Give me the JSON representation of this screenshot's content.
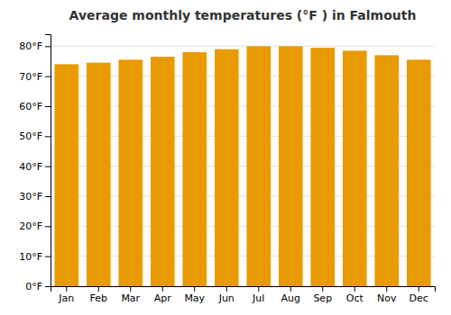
{
  "chart_data": {
    "type": "bar",
    "title": "Average monthly temperatures (°F ) in Falmouth",
    "categories": [
      "Jan",
      "Feb",
      "Mar",
      "Apr",
      "May",
      "Jun",
      "Jul",
      "Aug",
      "Sep",
      "Oct",
      "Nov",
      "Dec"
    ],
    "values": [
      74.0,
      74.5,
      75.5,
      76.5,
      78.0,
      79.0,
      80.0,
      80.0,
      79.5,
      78.5,
      77.0,
      75.5
    ],
    "color": "#E89B00",
    "ylim": [
      0,
      84
    ],
    "yticks": [
      {
        "value": 0,
        "label": "0°F"
      },
      {
        "value": 10,
        "label": "10°F"
      },
      {
        "value": 20,
        "label": "20°F"
      },
      {
        "value": 30,
        "label": "30°F"
      },
      {
        "value": 40,
        "label": "40°F"
      },
      {
        "value": 50,
        "label": "50°F"
      },
      {
        "value": 60,
        "label": "60°F"
      },
      {
        "value": 70,
        "label": "70°F"
      },
      {
        "value": 80,
        "label": "80°F"
      }
    ],
    "grid": true
  }
}
